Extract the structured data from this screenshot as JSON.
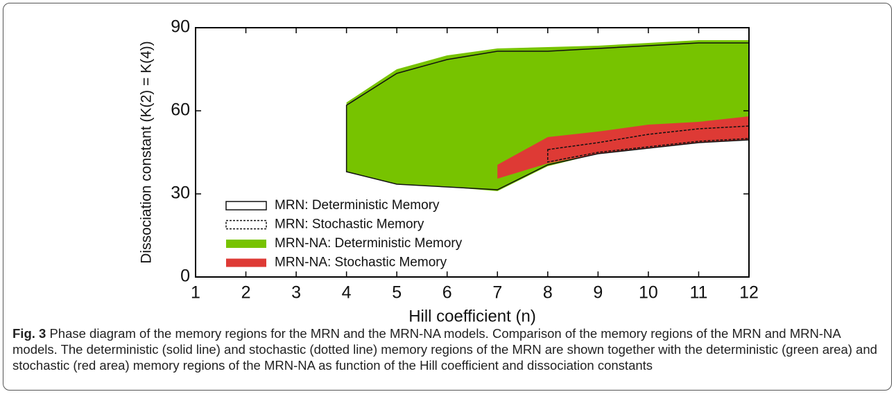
{
  "chart_data": {
    "type": "area-band",
    "xlabel": "Hill coefficient (n)",
    "ylabel": "Dissociation constant (K(2) = K(4))",
    "xlim": [
      1,
      12
    ],
    "xticks": [
      1,
      2,
      3,
      4,
      5,
      6,
      7,
      8,
      9,
      10,
      11,
      12
    ],
    "ylim": [
      0,
      90
    ],
    "yticks": [
      0,
      30,
      60,
      90
    ],
    "series": [
      {
        "name": "MRN: Deterministic Memory",
        "style": "solid",
        "color": "#111111",
        "x": [
          4,
          5,
          6,
          7,
          8,
          9,
          10,
          11,
          12
        ],
        "upper": [
          62,
          73.5,
          78.5,
          81.5,
          81.5,
          82.5,
          83.5,
          84.5,
          84.5
        ],
        "lower": [
          38,
          33.5,
          32.5,
          31.5,
          40.5,
          44.5,
          46.5,
          48.5,
          49.5
        ]
      },
      {
        "name": "MRN: Stochastic Memory",
        "style": "dotted",
        "color": "#111111",
        "x": [
          8,
          9,
          10,
          11,
          12
        ],
        "upper": [
          46,
          48.5,
          51.5,
          53.5,
          54.5
        ],
        "lower": [
          41.5,
          45,
          47,
          49,
          50
        ]
      },
      {
        "name": "MRN-NA: Deterministic Memory",
        "style": "fill",
        "color": "#77c300",
        "x": [
          4,
          5,
          6,
          7,
          8,
          9,
          10,
          11,
          12
        ],
        "upper": [
          63,
          75,
          80,
          82.5,
          83,
          83.5,
          84.5,
          85.5,
          85.5
        ],
        "lower": [
          38,
          33.5,
          32.5,
          31,
          40,
          44.5,
          46.5,
          48.5,
          49.5
        ]
      },
      {
        "name": "MRN-NA: Stochastic Memory",
        "style": "fill",
        "color": "#de3a35",
        "x": [
          7,
          8,
          9,
          10,
          11,
          12
        ],
        "upper": [
          40.5,
          50.5,
          52.5,
          55,
          56,
          58
        ],
        "lower": [
          35.5,
          41,
          44.5,
          46.5,
          48.5,
          49.5
        ]
      }
    ]
  },
  "caption": {
    "label": "Fig. 3",
    "text": "Phase diagram of the memory regions for the MRN and the MRN-NA models. Comparison of the memory regions of the MRN and MRN-NA models. The deterministic (solid line) and stochastic (dotted line) memory regions of the MRN are shown together with the deterministic (green area) and stochastic (red area) memory regions of the MRN-NA as function of the Hill coefficient and dissociation constants"
  }
}
